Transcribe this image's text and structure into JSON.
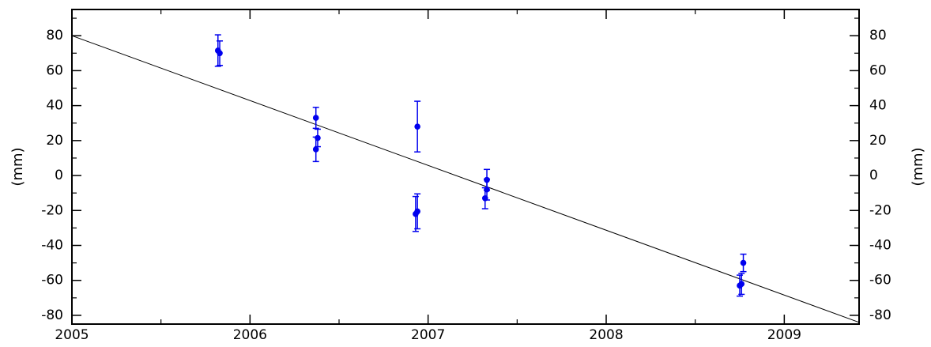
{
  "chart_data": {
    "type": "scatter",
    "title": "",
    "xlabel": "",
    "ylabel": "(mm)",
    "ylabel_right": "(mm)",
    "xlim": [
      2005.0,
      2009.42
    ],
    "ylim": [
      -85,
      95
    ],
    "x_ticks": [
      2005,
      2006,
      2007,
      2008,
      2009
    ],
    "y_ticks": [
      -80,
      -60,
      -40,
      -20,
      0,
      20,
      40,
      60,
      80
    ],
    "grid": false,
    "legend": "none",
    "marker_color": "#0000ee",
    "line_color": "#000000",
    "series": [
      {
        "type": "errorbar",
        "points": [
          {
            "x": 2005.82,
            "y": 71.5,
            "err": 9
          },
          {
            "x": 2005.83,
            "y": 70,
            "err": 7
          },
          {
            "x": 2006.37,
            "y": 33,
            "err": 6
          },
          {
            "x": 2006.38,
            "y": 21.5,
            "err": 5
          },
          {
            "x": 2006.37,
            "y": 15,
            "err": 7
          },
          {
            "x": 2006.94,
            "y": 28,
            "err": 14.5
          },
          {
            "x": 2006.94,
            "y": -20.5,
            "err": 10
          },
          {
            "x": 2006.93,
            "y": -22,
            "err": 10
          },
          {
            "x": 2007.33,
            "y": -2.5,
            "err": 6
          },
          {
            "x": 2007.33,
            "y": -8,
            "err": 6
          },
          {
            "x": 2007.32,
            "y": -13,
            "err": 6
          },
          {
            "x": 2008.77,
            "y": -50,
            "err": 5
          },
          {
            "x": 2008.76,
            "y": -62,
            "err": 6
          },
          {
            "x": 2008.75,
            "y": -63,
            "err": 6
          }
        ]
      },
      {
        "type": "line",
        "points": [
          {
            "x": 2005.0,
            "y": 80
          },
          {
            "x": 2009.42,
            "y": -84
          }
        ]
      }
    ]
  }
}
